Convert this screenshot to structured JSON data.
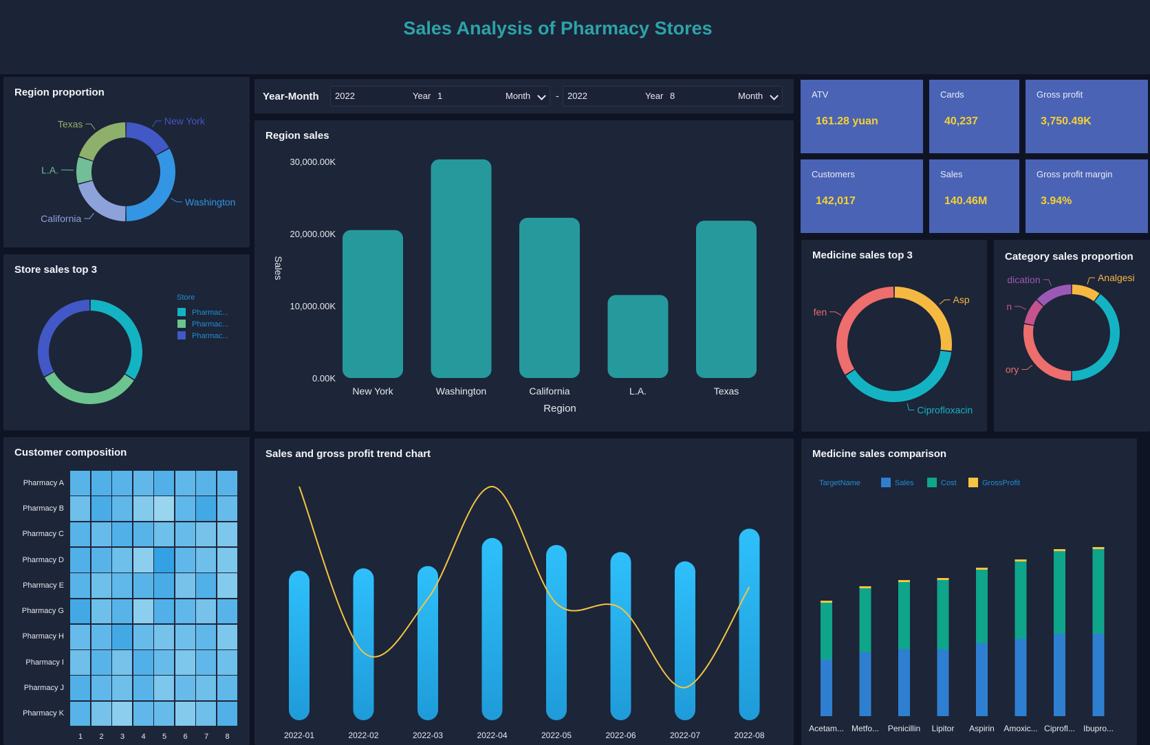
{
  "title": "Sales Analysis of Pharmacy Stores",
  "filter": {
    "label": "Year-Month",
    "start": {
      "year_value": "2022",
      "year_label": "Year",
      "month_value": "1",
      "month_label": "Month"
    },
    "separator": "-",
    "end": {
      "year_value": "2022",
      "year_label": "Year",
      "month_value": "8",
      "month_label": "Month"
    }
  },
  "kpis": [
    {
      "label": "ATV",
      "value": "161.28 yuan"
    },
    {
      "label": "Cards",
      "value": "40,237"
    },
    {
      "label": "Gross profit",
      "value": "3,750.49K"
    },
    {
      "label": "Customers",
      "value": "142,017"
    },
    {
      "label": "Sales",
      "value": "140.46M"
    },
    {
      "label": "Gross profit margin",
      "value": "3.94%"
    }
  ],
  "colors": {
    "teal": "#26a0a4",
    "blue": "#2bb8f5",
    "yellow": "#f5c542",
    "kpi_bg": "#4a63b5",
    "kpi_value": "#f5d132"
  },
  "chart_data": [
    {
      "id": "region_proportion",
      "type": "pie",
      "title": "Region proportion",
      "labels": [
        "New York",
        "Washington",
        "California",
        "L.A.",
        "Texas"
      ],
      "values": [
        17,
        33,
        21,
        9,
        20
      ],
      "colors": [
        "#4258c6",
        "#3395e3",
        "#8da2d9",
        "#72be97",
        "#8fb06a"
      ]
    },
    {
      "id": "store_sales_top3",
      "type": "pie",
      "title": "Store sales top 3",
      "legend_title": "Store",
      "labels": [
        "Pharmac...",
        "Pharmac...",
        "Pharmac..."
      ],
      "values": [
        34,
        33,
        33
      ],
      "colors": [
        "#14b3c4",
        "#6cc48f",
        "#4258c6"
      ]
    },
    {
      "id": "region_sales",
      "type": "bar",
      "title": "Region sales",
      "categories": [
        "New York",
        "Washington",
        "California",
        "L.A.",
        "Texas"
      ],
      "values": [
        20500,
        30300,
        22200,
        11500,
        21800
      ],
      "yticks": [
        "0.00K",
        "10,000.00K",
        "20,000.00K",
        "30,000.00K"
      ],
      "ytick_values": [
        0,
        10000,
        20000,
        30000
      ],
      "ylim": [
        0,
        30000
      ],
      "xlabel": "Region",
      "ylabel": "Sales",
      "color": "#26999d"
    },
    {
      "id": "medicine_sales_top3",
      "type": "pie",
      "title": "Medicine sales top 3",
      "labels": [
        "Asp",
        "Ciprofloxacin",
        "fen"
      ],
      "values": [
        27,
        39,
        34
      ],
      "colors": [
        "#f5b942",
        "#14b3c4",
        "#ee6d6d"
      ]
    },
    {
      "id": "category_sales_proportion",
      "type": "pie",
      "title": "Category sales proportion",
      "labels": [
        "Analgesi",
        "",
        "ory",
        "n",
        "dication"
      ],
      "values": [
        10,
        40,
        28,
        9,
        13
      ],
      "colors": [
        "#f5b942",
        "#14b3c4",
        "#ee6d6d",
        "#c6538c",
        "#9b59b6"
      ]
    },
    {
      "id": "customer_composition",
      "type": "heatmap",
      "title": "Customer composition",
      "rows": [
        "Pharmacy A",
        "Pharmacy B",
        "Pharmacy C",
        "Pharmacy D",
        "Pharmacy E",
        "Pharmacy G",
        "Pharmacy H",
        "Pharmacy I",
        "Pharmacy J",
        "Pharmacy K"
      ],
      "columns": [
        "1",
        "2",
        "3",
        "4",
        "5",
        "6",
        "7",
        "8"
      ],
      "values": [
        [
          0.6,
          0.65,
          0.6,
          0.55,
          0.65,
          0.55,
          0.6,
          0.6
        ],
        [
          0.45,
          0.7,
          0.55,
          0.3,
          0.15,
          0.55,
          0.75,
          0.5
        ],
        [
          0.6,
          0.5,
          0.65,
          0.6,
          0.45,
          0.5,
          0.4,
          0.35
        ],
        [
          0.65,
          0.6,
          0.45,
          0.25,
          0.85,
          0.55,
          0.45,
          0.35
        ],
        [
          0.6,
          0.45,
          0.55,
          0.6,
          0.7,
          0.4,
          0.65,
          0.3
        ],
        [
          0.75,
          0.45,
          0.6,
          0.25,
          0.65,
          0.55,
          0.4,
          0.6
        ],
        [
          0.5,
          0.55,
          0.75,
          0.5,
          0.4,
          0.45,
          0.55,
          0.35
        ],
        [
          0.45,
          0.6,
          0.4,
          0.65,
          0.5,
          0.35,
          0.55,
          0.45
        ],
        [
          0.65,
          0.55,
          0.45,
          0.6,
          0.35,
          0.5,
          0.45,
          0.55
        ],
        [
          0.6,
          0.4,
          0.25,
          0.55,
          0.5,
          0.3,
          0.45,
          0.65
        ]
      ]
    },
    {
      "id": "sales_gross_profit_trend",
      "type": "bar",
      "title": "Sales and gross profit trend chart",
      "categories": [
        "2022-01",
        "2022-02",
        "2022-03",
        "2022-04",
        "2022-05",
        "2022-06",
        "2022-07",
        "2022-08"
      ],
      "series": [
        {
          "name": "Sales",
          "type": "bar",
          "values": [
            64,
            65,
            66,
            78,
            75,
            72,
            68,
            82
          ]
        },
        {
          "name": "Gross profit",
          "type": "line",
          "values": [
            100,
            29,
            52,
            100,
            50,
            48,
            14,
            57
          ]
        }
      ],
      "ylim": [
        0,
        100
      ]
    },
    {
      "id": "medicine_sales_comparison",
      "type": "bar",
      "title": "Medicine sales comparison",
      "legend_title": "TargetName",
      "categories": [
        "Acetam...",
        "Metfo...",
        "Penicillin",
        "Lipitor",
        "Aspirin",
        "Amoxic...",
        "Ciprofl...",
        "Ibupro..."
      ],
      "series": [
        {
          "name": "Sales",
          "values": [
            55,
            62,
            65,
            65,
            71,
            75,
            80,
            80
          ],
          "color": "#2f7fd1"
        },
        {
          "name": "Cost",
          "values": [
            55,
            62,
            65,
            67,
            71,
            75,
            80,
            82
          ],
          "color": "#0fa58a"
        },
        {
          "name": "GrossProfit",
          "values": [
            2,
            2,
            2,
            2,
            2,
            2,
            2,
            2
          ],
          "color": "#f5c542"
        }
      ],
      "ylim": [
        0,
        200
      ]
    }
  ]
}
